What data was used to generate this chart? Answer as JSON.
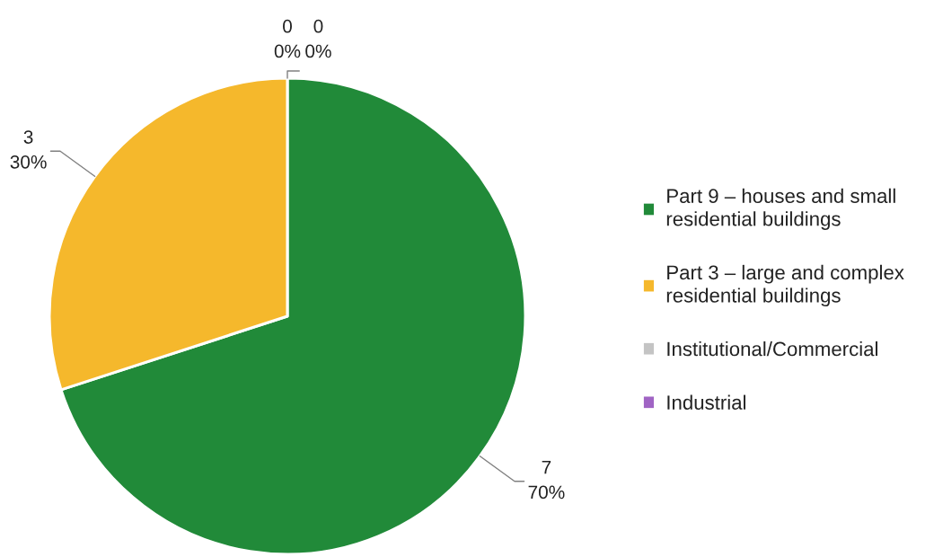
{
  "chart_data": {
    "type": "pie",
    "categories": [
      "Part 9 – houses and small\nresidential buildings",
      "Part 3 – large and complex\nresidential buildings",
      "Institutional/Commercial",
      "Industrial"
    ],
    "values": [
      7,
      3,
      0,
      0
    ],
    "colors": [
      "#218a39",
      "#f5b82c",
      "#c4c4c4",
      "#a064c4"
    ],
    "value_labels": [
      "7\n70%",
      "3\n30%",
      "0\n0%",
      "0\n0%"
    ],
    "legend": "right"
  }
}
